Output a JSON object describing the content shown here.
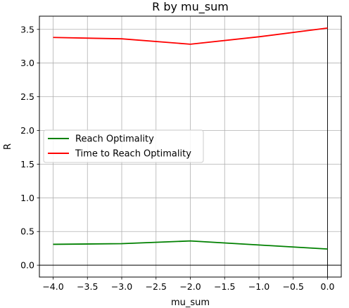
{
  "chart_data": {
    "type": "line",
    "title": "R by mu_sum",
    "xlabel": "mu_sum",
    "ylabel": "R",
    "xlim": [
      -4.2,
      0.2
    ],
    "ylim": [
      -0.176,
      3.696
    ],
    "xticks": [
      -4.0,
      -3.5,
      -3.0,
      -2.5,
      -2.0,
      -1.5,
      -1.0,
      -0.5,
      0.0
    ],
    "xtick_labels": [
      "−4.0",
      "−3.5",
      "−3.0",
      "−2.5",
      "−2.0",
      "−1.5",
      "−1.0",
      "−0.5",
      "0.0"
    ],
    "yticks": [
      0.0,
      0.5,
      1.0,
      1.5,
      2.0,
      2.5,
      3.0,
      3.5
    ],
    "ytick_labels": [
      "0.0",
      "0.5",
      "1.0",
      "1.5",
      "2.0",
      "2.5",
      "3.0",
      "3.5"
    ],
    "grid": true,
    "zero_lines": true,
    "legend_position": "center-left",
    "x": [
      -4.0,
      -3.0,
      -2.0,
      -1.0,
      0.0
    ],
    "series": [
      {
        "name": "Reach Optimality",
        "color": "#008000",
        "values": [
          0.31,
          0.32,
          0.36,
          0.3,
          0.24
        ]
      },
      {
        "name": "Time to Reach Optimality",
        "color": "#ff0000",
        "values": [
          3.38,
          3.36,
          3.28,
          3.39,
          3.52
        ]
      }
    ]
  }
}
